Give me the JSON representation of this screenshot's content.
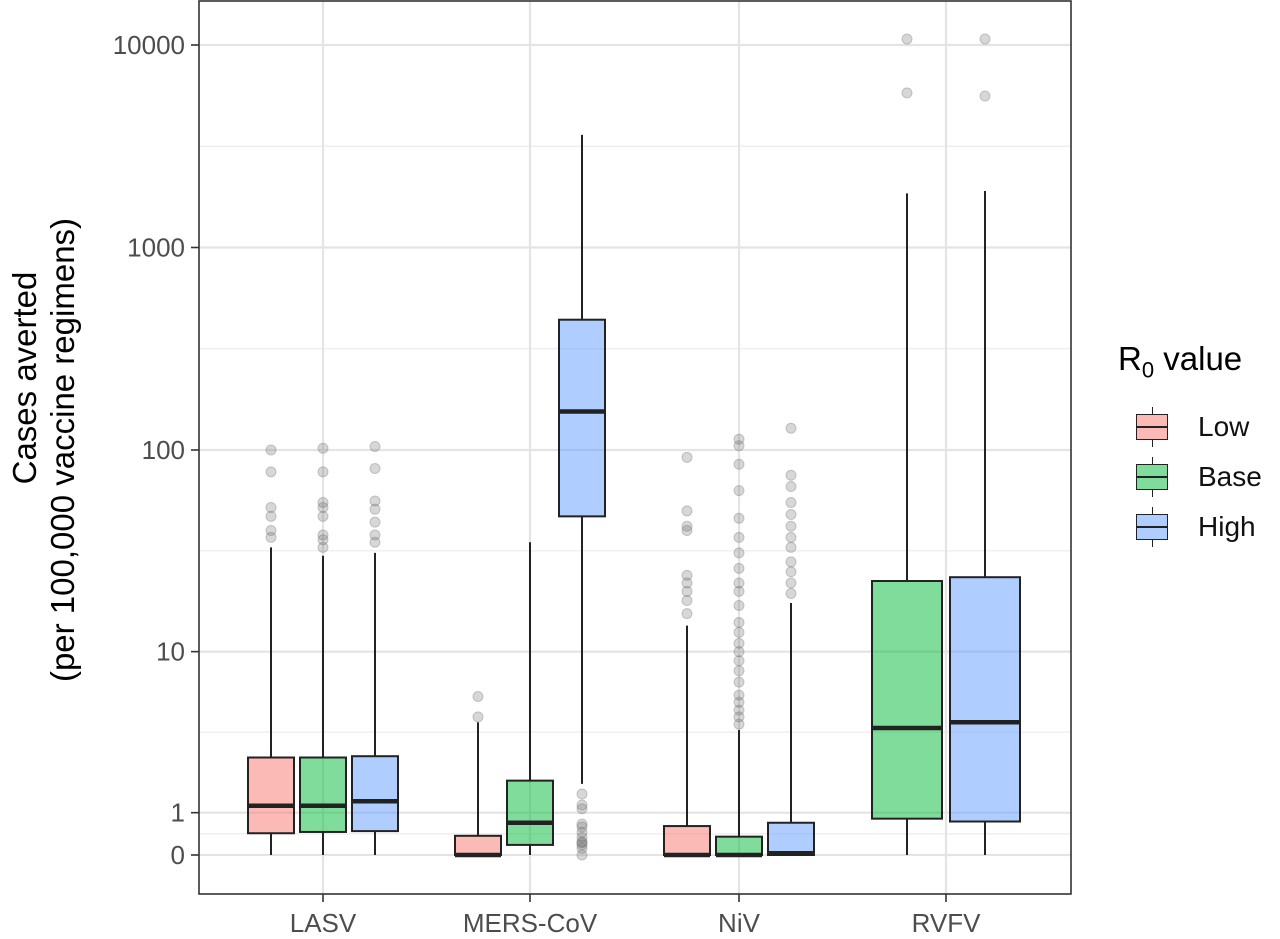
{
  "chart_data": {
    "type": "boxplot",
    "ylabel_line1": "Cases averted",
    "ylabel_line2": "(per 100,000 vaccine regimens)",
    "y_scale": "pseudo-log",
    "y_ticks": [
      0,
      1,
      10,
      100,
      1000,
      10000
    ],
    "y_tick_labels": [
      "0",
      "1",
      "10",
      "100",
      "1000",
      "10000"
    ],
    "categories": [
      "LASV",
      "MERS-CoV",
      "NiV",
      "RVFV"
    ],
    "legend": {
      "title": "R",
      "title_sub": "0",
      "title_rest": " value",
      "position": "right"
    },
    "series": [
      {
        "name": "Low",
        "color": "#F8766D",
        "boxes": [
          {
            "category": "LASV",
            "min": 0,
            "q1": 0.5,
            "median": 1.18,
            "q3": 2.7,
            "max": 33,
            "outliers": [
              37,
              40,
              47,
              52,
              78,
              100
            ]
          },
          {
            "category": "MERS-CoV",
            "min": 0,
            "q1": 0,
            "median": 0,
            "q3": 0.44,
            "max": 4.3,
            "outliers": [
              4.6,
              5.9
            ]
          },
          {
            "category": "NiV",
            "min": 0,
            "q1": 0,
            "median": 0,
            "q3": 0.67,
            "max": 13.5,
            "outliers": [
              15.5,
              18,
              20,
              22,
              24,
              40,
              42,
              50,
              92
            ]
          },
          null
        ]
      },
      {
        "name": "Base",
        "color": "#00BA38",
        "boxes": [
          {
            "category": "LASV",
            "min": 0,
            "q1": 0.53,
            "median": 1.18,
            "q3": 2.7,
            "max": 30,
            "outliers": [
              33,
              36,
              38,
              47,
              52,
              55,
              78,
              102
            ]
          },
          {
            "category": "MERS-CoV",
            "min": 0,
            "q1": 0.23,
            "median": 0.75,
            "q3": 1.9,
            "max": 35,
            "outliers": []
          },
          {
            "category": "NiV",
            "min": 0,
            "q1": 0,
            "median": 0,
            "q3": 0.42,
            "max": 3.9,
            "outliers": [
              4.2,
              4.6,
              5,
              5.5,
              6,
              7,
              8,
              9,
              10,
              11,
              12.5,
              14,
              17,
              20,
              22,
              26,
              31,
              37,
              46,
              63,
              85,
              105,
              113
            ]
          },
          {
            "category": "RVFV",
            "min": 0,
            "q1": 0.85,
            "median": 4.0,
            "q3": 22.5,
            "max": 1850,
            "outliers": [
              5800,
              10700
            ]
          }
        ]
      },
      {
        "name": "High",
        "color": "#619CFF",
        "boxes": [
          {
            "category": "LASV",
            "min": 0,
            "q1": 0.55,
            "median": 1.3,
            "q3": 2.75,
            "max": 31,
            "outliers": [
              35,
              38,
              44,
              51,
              56,
              81,
              104
            ]
          },
          {
            "category": "MERS-CoV",
            "min": 1.8,
            "q1": 47,
            "median": 155,
            "q3": 440,
            "max": 3600,
            "outliers": [
              0,
              0.15,
              0.23,
              0.28,
              0.3,
              0.4,
              0.52,
              0.65,
              0.72,
              1.1,
              1.2,
              1.5
            ]
          },
          {
            "category": "NiV",
            "min": 0,
            "q1": 0,
            "median": 0.04,
            "q3": 0.75,
            "max": 17.5,
            "outliers": [
              19.5,
              22,
              25,
              28,
              33,
              37,
              42,
              48,
              55,
              66,
              75,
              128
            ]
          },
          {
            "category": "RVFV",
            "min": 0,
            "q1": 0.78,
            "median": 4.3,
            "q3": 23.5,
            "max": 1900,
            "outliers": [
              5600,
              10700
            ]
          }
        ]
      }
    ]
  }
}
